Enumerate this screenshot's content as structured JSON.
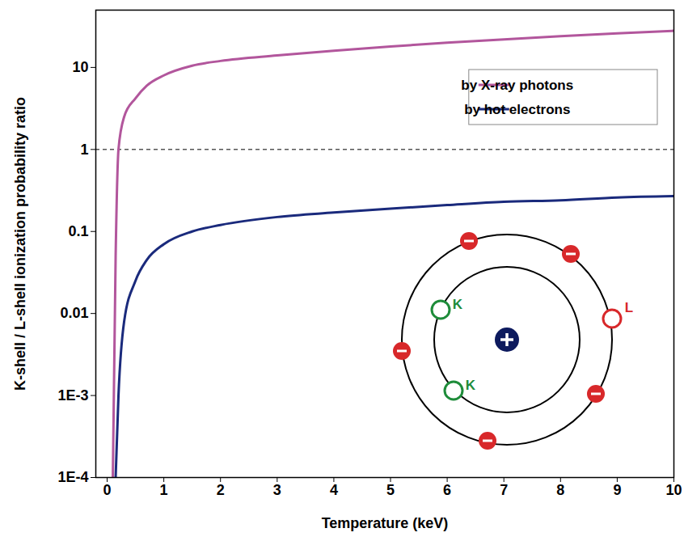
{
  "chart_data": {
    "type": "line",
    "x_label": "Temperature (keV)",
    "y_label": "K-shell / L-shell ionization probability ratio",
    "log": "y",
    "xlim": [
      -0.2,
      10
    ],
    "ylim": [
      0.0001,
      50
    ],
    "xticks": [
      0,
      1,
      2,
      3,
      4,
      5,
      6,
      7,
      8,
      9,
      10
    ],
    "yticks": [
      {
        "value": 0.0001,
        "label": "1E-4"
      },
      {
        "value": 0.001,
        "label": "1E-3"
      },
      0.01,
      0.1,
      1,
      10
    ],
    "reference_line": 1,
    "legend": "top-right",
    "x": [
      0.1,
      0.15,
      0.2,
      0.3,
      0.5,
      0.7,
      1,
      1.5,
      2,
      3,
      4,
      5,
      6,
      7,
      8,
      9,
      10
    ],
    "series": [
      {
        "name": "by X-ray photons",
        "color": "#b2569c",
        "values": [
          0.0001,
          0.05,
          1,
          2.5,
          4.2,
          6,
          8,
          10.5,
          12,
          14,
          16,
          18,
          20,
          22,
          24,
          26,
          28
        ]
      },
      {
        "name": "by hot electrons",
        "color": "#1a2a7c",
        "values": [
          null,
          0.0001,
          0.001,
          0.008,
          0.025,
          0.045,
          0.07,
          0.1,
          0.12,
          0.15,
          0.17,
          0.19,
          0.21,
          0.23,
          0.24,
          0.26,
          0.27
        ]
      }
    ],
    "inset_labels": [
      "K",
      "K",
      "L"
    ]
  }
}
